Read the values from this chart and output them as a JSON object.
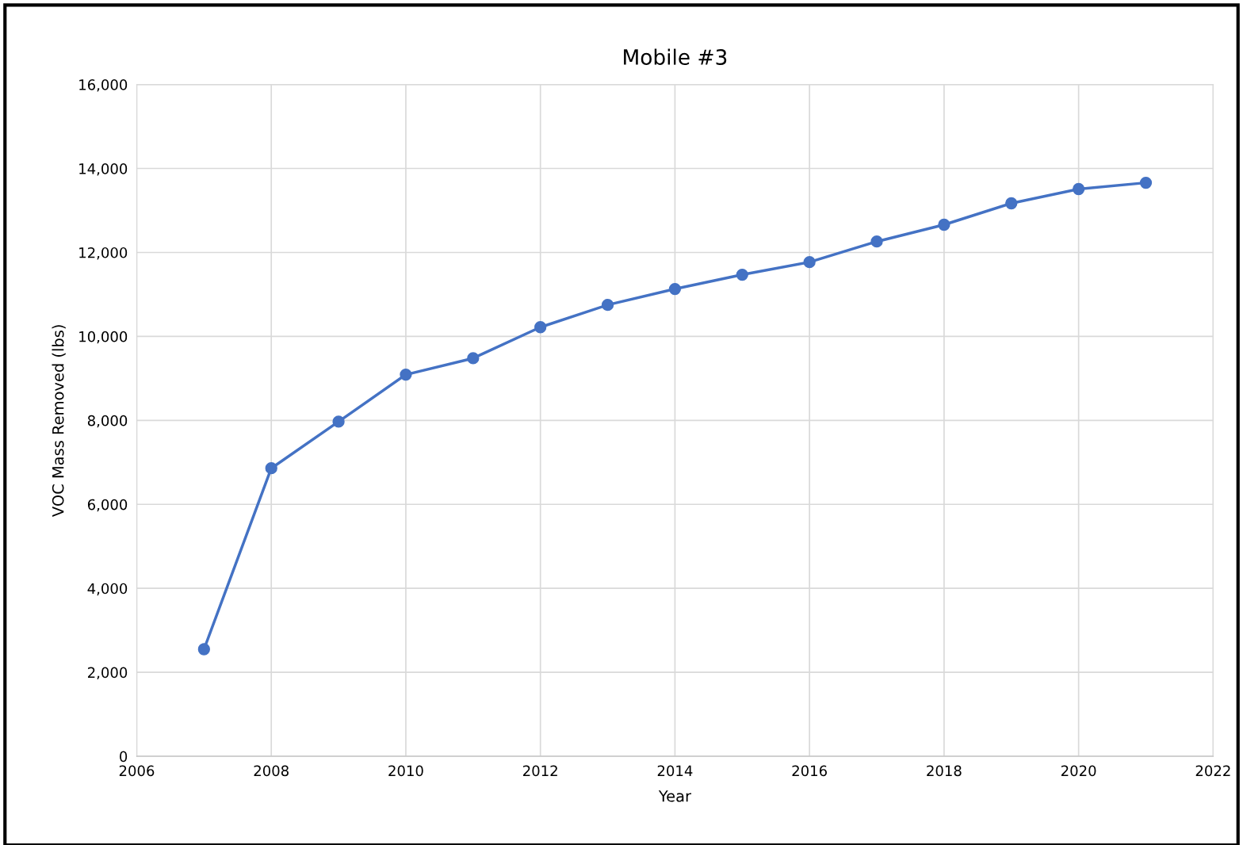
{
  "chart_data": {
    "type": "line",
    "title": "Mobile #3",
    "xlabel": "Year",
    "ylabel": "VOC Mass Removed (lbs)",
    "x": [
      2007,
      2008,
      2009,
      2010,
      2011,
      2012,
      2013,
      2014,
      2015,
      2016,
      2017,
      2018,
      2019,
      2020,
      2021
    ],
    "series": [
      {
        "color": "#4472c4",
        "values": [
          2550,
          6860,
          7970,
          9090,
          9480,
          10220,
          10750,
          11130,
          11470,
          11770,
          12260,
          12660,
          13170,
          13510,
          13660
        ]
      }
    ],
    "xlim": [
      2006,
      2022
    ],
    "xticks": [
      2006,
      2008,
      2010,
      2012,
      2014,
      2016,
      2018,
      2020,
      2022
    ],
    "ylim": [
      0,
      16000
    ],
    "yticks": [
      0,
      {
        "value": 2000,
        "label": "2,000"
      },
      {
        "value": 4000,
        "label": "4,000"
      },
      {
        "value": 6000,
        "label": "6,000"
      },
      {
        "value": 8000,
        "label": "8,000"
      },
      {
        "value": 10000,
        "label": "10,000"
      },
      {
        "value": 12000,
        "label": "12,000"
      },
      {
        "value": 14000,
        "label": "14,000"
      },
      {
        "value": 16000,
        "label": "16,000"
      }
    ],
    "grid": true,
    "marker": "circle",
    "line_style": "solid"
  }
}
